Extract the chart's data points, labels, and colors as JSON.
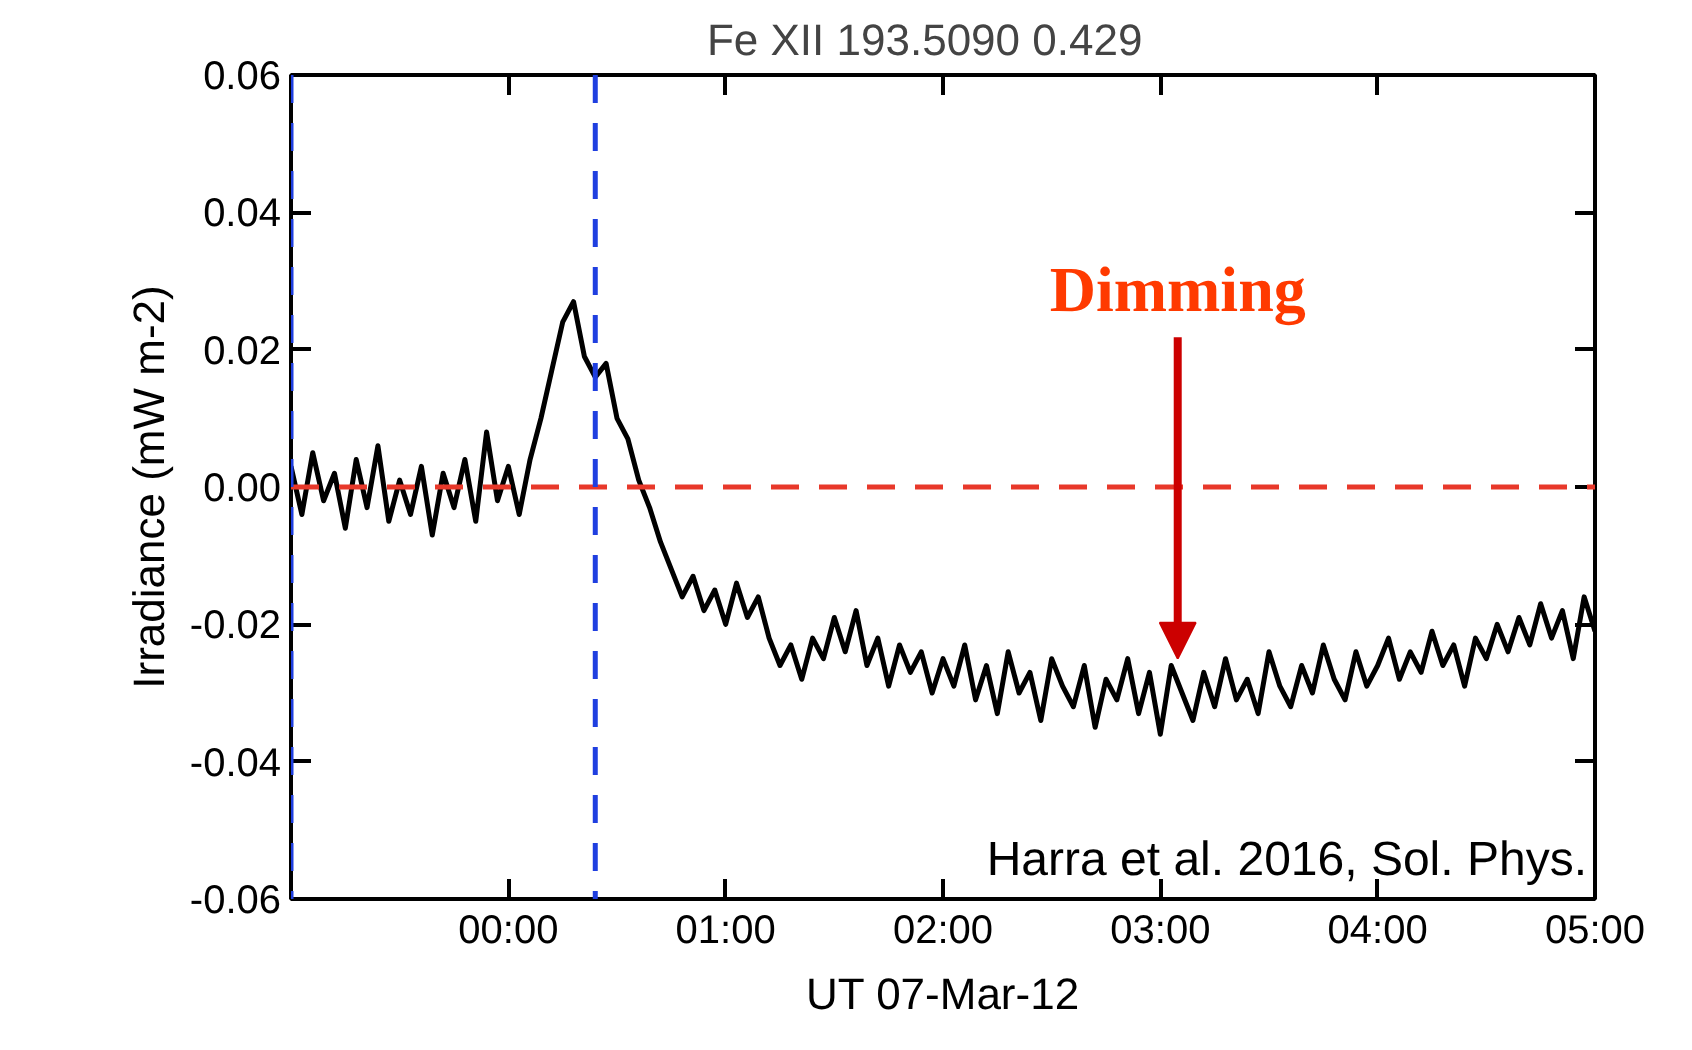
{
  "chart_data": {
    "type": "line",
    "title": "Fe XII 193.5090    0.429",
    "xlabel": "UT 07-Mar-12",
    "ylabel": "Irradiance (mW m-2)",
    "x": [
      -1.0,
      -0.95,
      -0.9,
      -0.85,
      -0.8,
      -0.75,
      -0.7,
      -0.65,
      -0.6,
      -0.55,
      -0.5,
      -0.45,
      -0.4,
      -0.35,
      -0.3,
      -0.25,
      -0.2,
      -0.15,
      -0.1,
      -0.05,
      0.0,
      0.05,
      0.1,
      0.15,
      0.2,
      0.25,
      0.3,
      0.35,
      0.4,
      0.45,
      0.5,
      0.55,
      0.6,
      0.65,
      0.7,
      0.75,
      0.8,
      0.85,
      0.9,
      0.95,
      1.0,
      1.05,
      1.1,
      1.15,
      1.2,
      1.25,
      1.3,
      1.35,
      1.4,
      1.45,
      1.5,
      1.55,
      1.6,
      1.65,
      1.7,
      1.75,
      1.8,
      1.85,
      1.9,
      1.95,
      2.0,
      2.05,
      2.1,
      2.15,
      2.2,
      2.25,
      2.3,
      2.35,
      2.4,
      2.45,
      2.5,
      2.55,
      2.6,
      2.65,
      2.7,
      2.75,
      2.8,
      2.85,
      2.9,
      2.95,
      3.0,
      3.05,
      3.1,
      3.15,
      3.2,
      3.25,
      3.3,
      3.35,
      3.4,
      3.45,
      3.5,
      3.55,
      3.6,
      3.65,
      3.7,
      3.75,
      3.8,
      3.85,
      3.9,
      3.95,
      4.0,
      4.05,
      4.1,
      4.15,
      4.2,
      4.25,
      4.3,
      4.35,
      4.4,
      4.45,
      4.5,
      4.55,
      4.6,
      4.65,
      4.7,
      4.75,
      4.8,
      4.85,
      4.9,
      4.95,
      5.0
    ],
    "series": [
      {
        "color": "#000000",
        "values": [
          0.003,
          -0.004,
          0.005,
          -0.002,
          0.002,
          -0.006,
          0.004,
          -0.003,
          0.006,
          -0.005,
          0.001,
          -0.004,
          0.003,
          -0.007,
          0.002,
          -0.003,
          0.004,
          -0.005,
          0.008,
          -0.002,
          0.003,
          -0.004,
          0.004,
          0.01,
          0.017,
          0.024,
          0.027,
          0.019,
          0.016,
          0.018,
          0.01,
          0.007,
          0.001,
          -0.003,
          -0.008,
          -0.012,
          -0.016,
          -0.013,
          -0.018,
          -0.015,
          -0.02,
          -0.014,
          -0.019,
          -0.016,
          -0.022,
          -0.026,
          -0.023,
          -0.028,
          -0.022,
          -0.025,
          -0.019,
          -0.024,
          -0.018,
          -0.026,
          -0.022,
          -0.029,
          -0.023,
          -0.027,
          -0.024,
          -0.03,
          -0.025,
          -0.029,
          -0.023,
          -0.031,
          -0.026,
          -0.033,
          -0.024,
          -0.03,
          -0.027,
          -0.034,
          -0.025,
          -0.029,
          -0.032,
          -0.026,
          -0.035,
          -0.028,
          -0.031,
          -0.025,
          -0.033,
          -0.027,
          -0.036,
          -0.026,
          -0.03,
          -0.034,
          -0.027,
          -0.032,
          -0.025,
          -0.031,
          -0.028,
          -0.033,
          -0.024,
          -0.029,
          -0.032,
          -0.026,
          -0.03,
          -0.023,
          -0.028,
          -0.031,
          -0.024,
          -0.029,
          -0.026,
          -0.022,
          -0.028,
          -0.024,
          -0.027,
          -0.021,
          -0.026,
          -0.023,
          -0.029,
          -0.022,
          -0.025,
          -0.02,
          -0.024,
          -0.019,
          -0.023,
          -0.017,
          -0.022,
          -0.018,
          -0.025,
          -0.016,
          -0.021
        ]
      }
    ],
    "xlim": [
      -1,
      5
    ],
    "xticks": [
      {
        "value": 0,
        "label": "00:00"
      },
      {
        "value": 1,
        "label": "01:00"
      },
      {
        "value": 2,
        "label": "02:00"
      },
      {
        "value": 3,
        "label": "03:00"
      },
      {
        "value": 4,
        "label": "04:00"
      },
      {
        "value": 5,
        "label": "05:00"
      }
    ],
    "ylim": [
      -0.06,
      0.06
    ],
    "yticks": [
      {
        "value": -0.06,
        "label": "-0.06"
      },
      {
        "value": -0.04,
        "label": "-0.04"
      },
      {
        "value": -0.02,
        "label": "-0.02"
      },
      {
        "value": 0,
        "label": "0.00"
      },
      {
        "value": 0.02,
        "label": "0.02"
      },
      {
        "value": 0.04,
        "label": "0.04"
      },
      {
        "value": 0.06,
        "label": "0.06"
      }
    ],
    "ref_lines": [
      {
        "axis": "y",
        "value": 0,
        "color": "#e8382a",
        "line_style": "dashed"
      },
      {
        "axis": "x",
        "value": 0.4,
        "color": "#1f3fe0",
        "line_style": "dashed"
      },
      {
        "axis": "x",
        "value": -1,
        "color": "#1f3fe0",
        "line_style": "dashed"
      }
    ],
    "annotations": [
      {
        "text": "Dimming",
        "x": 3.08,
        "y": -0.025
      },
      "Harra et al. 2016, Sol. Phys."
    ],
    "grid": false
  }
}
